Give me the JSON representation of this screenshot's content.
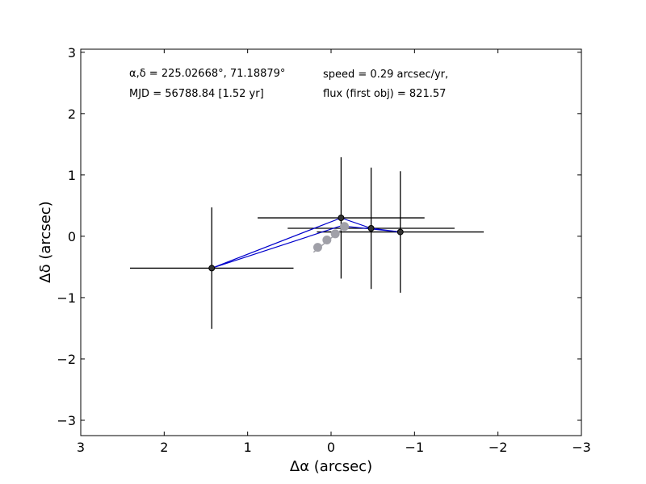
{
  "chart_data": {
    "type": "scatter",
    "xlabel": "Δα (arcsec)",
    "ylabel": "Δδ (arcsec)",
    "xlim": [
      3,
      -3
    ],
    "ylim": [
      -3.25,
      3.05
    ],
    "xticks": [
      3,
      2,
      1,
      0,
      -1,
      -2,
      -3
    ],
    "yticks": [
      3,
      2,
      1,
      0,
      -1,
      -2,
      -3
    ],
    "xtick_labels": [
      "3",
      "2",
      "1",
      "0",
      "−1",
      "−2",
      "−3"
    ],
    "ytick_labels": [
      "3",
      "2",
      "1",
      "0",
      "−1",
      "−2",
      "−3"
    ],
    "grid": false,
    "annotations": {
      "coords": "α,δ = 225.02668°, 71.18879°",
      "mjd": "MJD = 56788.84 [1.52 yr]",
      "speed": "speed = 0.29 arcsec/yr,",
      "flux": "flux (first obj) = 821.57"
    },
    "observations": [
      {
        "x": 1.43,
        "y": -0.52,
        "xerr": 0.98,
        "yerr": 0.99
      },
      {
        "x": -0.12,
        "y": 0.3,
        "xerr": 1.0,
        "yerr": 0.99
      },
      {
        "x": -0.48,
        "y": 0.13,
        "xerr": 1.0,
        "yerr": 0.99
      },
      {
        "x": -0.83,
        "y": 0.07,
        "xerr": 1.0,
        "yerr": 0.99
      }
    ],
    "path": [
      {
        "x": 1.43,
        "y": -0.52
      },
      {
        "x": -0.12,
        "y": 0.3
      },
      {
        "x": -0.48,
        "y": 0.13
      },
      {
        "x": -0.83,
        "y": 0.07
      },
      {
        "x": -0.12,
        "y": 0.17
      },
      {
        "x": 1.43,
        "y": -0.52
      }
    ],
    "model_track": [
      {
        "x": 0.16,
        "y": -0.18
      },
      {
        "x": 0.05,
        "y": -0.06
      },
      {
        "x": -0.05,
        "y": 0.04
      },
      {
        "x": -0.16,
        "y": 0.16
      }
    ],
    "model_arrow": {
      "x1": 0.21,
      "y1": -0.26,
      "x2": -0.19,
      "y2": 0.18
    },
    "colors": {
      "observations": "#000000",
      "marker_fill": "#333333",
      "path": "#0000cc",
      "model_track": "#a0a0a8"
    }
  }
}
